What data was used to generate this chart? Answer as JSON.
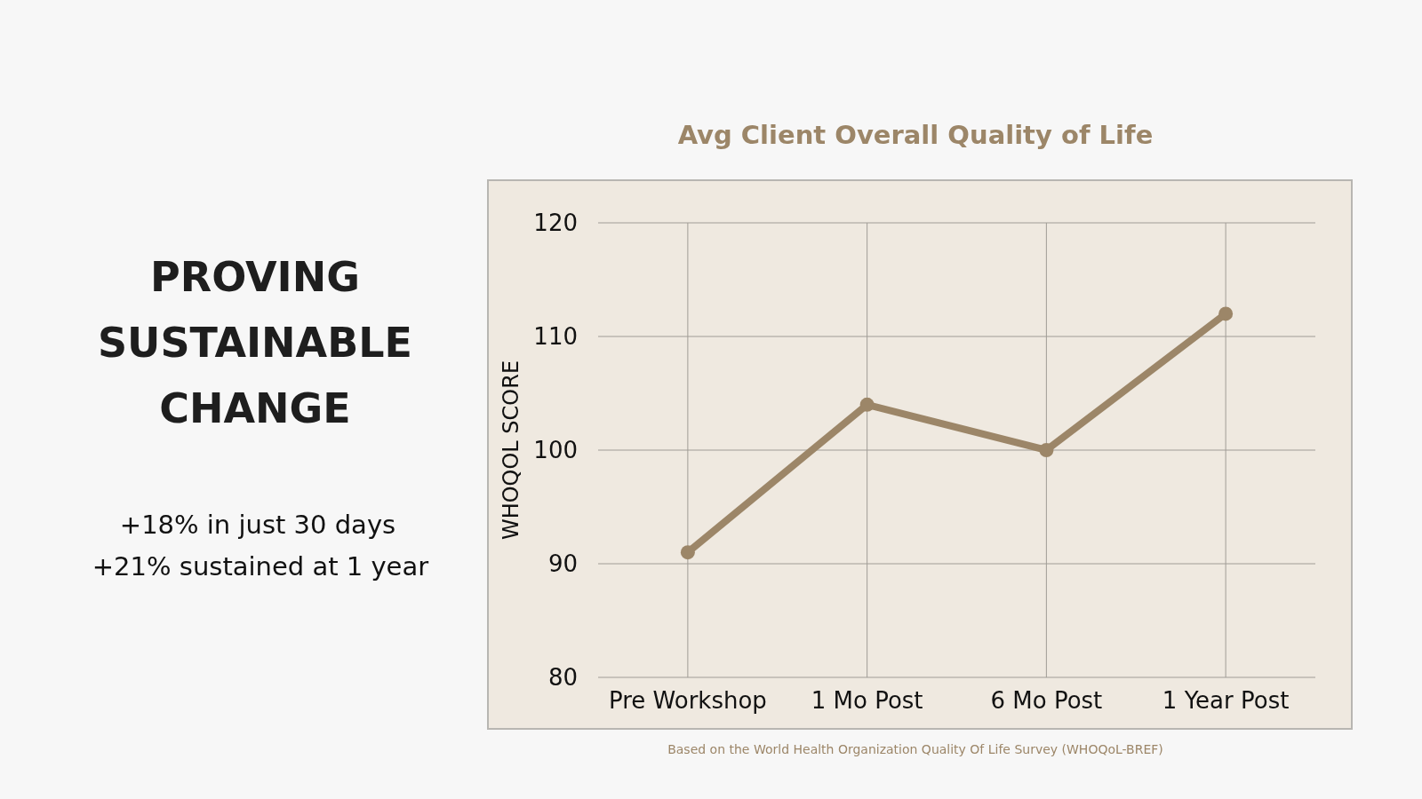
{
  "chart_data": {
    "type": "line",
    "title": "Avg Client Overall Quality of Life",
    "ylabel": "WHOQOL SCORE",
    "categories": [
      "Pre Workshop",
      "1 Mo Post",
      "6 Mo Post",
      "1 Year Post"
    ],
    "series": [
      {
        "color": "#9c8668",
        "values": [
          91,
          104,
          100,
          112
        ]
      }
    ],
    "ylim": [
      80,
      120
    ],
    "yticks": [
      80,
      90,
      100,
      110,
      120
    ],
    "grid": true,
    "marker": "circle",
    "line_style": "solid",
    "annotations": [
      "PROVING SUSTAINABLE CHANGE",
      "+18% in just 30 days",
      "+21% sustained at 1 year",
      "Based on the World Health Organization Quality Of Life Survey (WHOQoL-BREF)"
    ]
  }
}
